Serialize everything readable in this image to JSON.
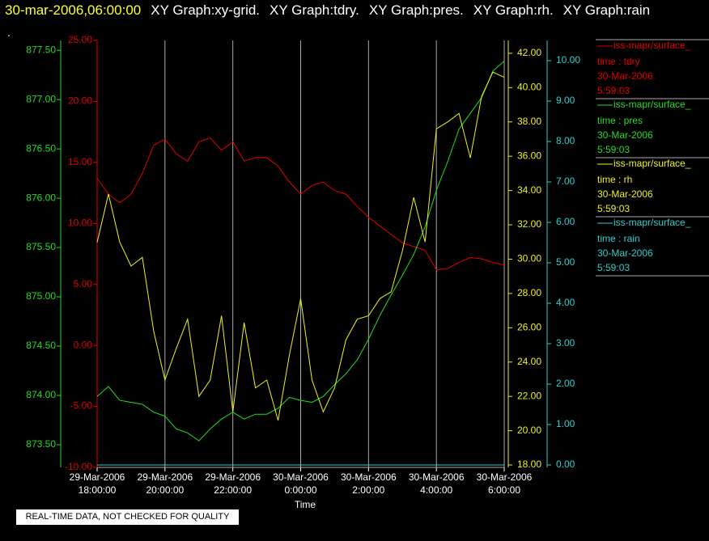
{
  "chart_data": {
    "type": "line",
    "title": "30-mar-2006,06:00:00",
    "graphs": [
      "XY Graph:xy-grid.",
      "XY Graph:tdry.",
      "XY Graph:pres.",
      "XY Graph:rh.",
      "XY Graph:rain"
    ],
    "dot": ".",
    "x_label": "Time",
    "note": "REAL-TIME DATA, NOT CHECKED FOR QUALITY",
    "grid": true,
    "x": [
      "2006-03-29T18:00",
      "2006-03-29T18:20",
      "2006-03-29T18:40",
      "2006-03-29T19:00",
      "2006-03-29T19:20",
      "2006-03-29T19:40",
      "2006-03-29T20:00",
      "2006-03-29T20:20",
      "2006-03-29T20:40",
      "2006-03-29T21:00",
      "2006-03-29T21:20",
      "2006-03-29T21:40",
      "2006-03-29T22:00",
      "2006-03-29T22:20",
      "2006-03-29T22:40",
      "2006-03-29T23:00",
      "2006-03-29T23:20",
      "2006-03-29T23:40",
      "2006-03-30T00:00",
      "2006-03-30T00:20",
      "2006-03-30T00:40",
      "2006-03-30T01:00",
      "2006-03-30T01:20",
      "2006-03-30T01:40",
      "2006-03-30T02:00",
      "2006-03-30T02:20",
      "2006-03-30T02:40",
      "2006-03-30T03:00",
      "2006-03-30T03:20",
      "2006-03-30T03:40",
      "2006-03-30T04:00",
      "2006-03-30T04:20",
      "2006-03-30T04:40",
      "2006-03-30T05:00",
      "2006-03-30T05:20",
      "2006-03-30T05:40",
      "2006-03-30T06:00"
    ],
    "xlim": [
      "2006-03-29T18:00",
      "2006-03-30T06:00"
    ],
    "xticks": [
      {
        "value": "2006-03-29T18:00",
        "label": [
          "29-Mar-2006",
          "18:00:00"
        ]
      },
      {
        "value": "2006-03-29T20:00",
        "label": [
          "29-Mar-2006",
          "20:00:00"
        ]
      },
      {
        "value": "2006-03-29T22:00",
        "label": [
          "29-Mar-2006",
          "22:00:00"
        ]
      },
      {
        "value": "2006-03-30T00:00",
        "label": [
          "30-Mar-2006",
          "0:00:00"
        ]
      },
      {
        "value": "2006-03-30T02:00",
        "label": [
          "30-Mar-2006",
          "2:00:00"
        ]
      },
      {
        "value": "2006-03-30T04:00",
        "label": [
          "30-Mar-2006",
          "4:00:00"
        ]
      },
      {
        "value": "2006-03-30T06:00",
        "label": [
          "30-Mar-2006",
          "6:00:00"
        ]
      }
    ],
    "ylim": [
      -10,
      25
    ],
    "yticks": [
      {
        "value": -10,
        "label": "-10.00"
      },
      {
        "value": -5,
        "label": "-5.00"
      },
      {
        "value": 0,
        "label": "0.00"
      },
      {
        "value": 5,
        "label": "5.00"
      },
      {
        "value": 10,
        "label": "10.00"
      },
      {
        "value": 15,
        "label": "15.00"
      },
      {
        "value": 20,
        "label": "20.00"
      },
      {
        "value": 25,
        "label": "25.00"
      }
    ],
    "y2lim": [
      873.27,
      877.6
    ],
    "y2ticks": [
      {
        "value": 873.5,
        "label": "873.50"
      },
      {
        "value": 874,
        "label": "874.00"
      },
      {
        "value": 874.5,
        "label": "874.50"
      },
      {
        "value": 875,
        "label": "875.00"
      },
      {
        "value": 875.5,
        "label": "875.50"
      },
      {
        "value": 876,
        "label": "876.00"
      },
      {
        "value": 876.5,
        "label": "876.50"
      },
      {
        "value": 877,
        "label": "877.00"
      },
      {
        "value": 877.5,
        "label": "877.50"
      }
    ],
    "y3lim": [
      17.86,
      42.75
    ],
    "y3ticks": [
      {
        "value": 18,
        "label": "18.00"
      },
      {
        "value": 20,
        "label": "20.00"
      },
      {
        "value": 22,
        "label": "22.00"
      },
      {
        "value": 24,
        "label": "24.00"
      },
      {
        "value": 26,
        "label": "26.00"
      },
      {
        "value": 28,
        "label": "28.00"
      },
      {
        "value": 30,
        "label": "30.00"
      },
      {
        "value": 32,
        "label": "32.00"
      },
      {
        "value": 34,
        "label": "34.00"
      },
      {
        "value": 36,
        "label": "36.00"
      },
      {
        "value": 38,
        "label": "38.00"
      },
      {
        "value": 40,
        "label": "40.00"
      },
      {
        "value": 42,
        "label": "42.00"
      }
    ],
    "y4lim": [
      -0.06,
      10.5
    ],
    "y4ticks": [
      {
        "value": 0,
        "label": "0.00"
      },
      {
        "value": 1,
        "label": "1.00"
      },
      {
        "value": 2,
        "label": "2.00"
      },
      {
        "value": 3,
        "label": "3.00"
      },
      {
        "value": 4,
        "label": "4.00"
      },
      {
        "value": 5,
        "label": "5.00"
      },
      {
        "value": 6,
        "label": "6.00"
      },
      {
        "value": 7,
        "label": "7.00"
      },
      {
        "value": 8,
        "label": "8.00"
      },
      {
        "value": 9,
        "label": "9.00"
      },
      {
        "value": 10,
        "label": "10.00"
      }
    ],
    "series": [
      {
        "name": "iss-mapr/surface_",
        "legend_lines": [
          "time : tdry",
          "30-Mar-2006",
          "5:59:03"
        ],
        "color": "#e00000",
        "axis": "y",
        "values": [
          13.7,
          12.4,
          11.7,
          12.4,
          14.1,
          16.4,
          16.9,
          15.7,
          15.1,
          16.7,
          17.0,
          16.0,
          16.7,
          15.1,
          15.4,
          15.4,
          14.7,
          13.4,
          12.4,
          13.1,
          13.4,
          12.7,
          12.4,
          11.4,
          10.5,
          9.8,
          9.1,
          8.4,
          8.1,
          7.8,
          6.2,
          6.3,
          6.8,
          7.2,
          7.1,
          6.8,
          6.6
        ]
      },
      {
        "name": "iss-mapr/surface_",
        "legend_lines": [
          "time : pres",
          "30-Mar-2006",
          "5:59:03"
        ],
        "color": "#22dd22",
        "axis": "y2",
        "values": [
          873.99,
          874.09,
          873.95,
          873.93,
          873.91,
          873.83,
          873.79,
          873.66,
          873.62,
          873.54,
          873.66,
          873.76,
          873.83,
          873.76,
          873.81,
          873.81,
          873.87,
          873.98,
          873.95,
          873.93,
          873.99,
          874.11,
          874.22,
          874.36,
          874.57,
          874.81,
          875.02,
          875.22,
          875.43,
          875.71,
          876.08,
          876.37,
          876.7,
          876.86,
          877.02,
          877.29,
          877.39
        ]
      },
      {
        "name": "iss-mapr/surface_",
        "legend_lines": [
          "time : rh",
          "30-Mar-2006",
          "5:59:03"
        ],
        "color": "#f0f020",
        "axis": "y3",
        "values": [
          30.97,
          33.8,
          31.0,
          29.6,
          30.1,
          25.8,
          22.95,
          24.8,
          26.5,
          22.0,
          22.95,
          26.7,
          21.1,
          26.3,
          22.5,
          22.95,
          20.6,
          24.4,
          27.7,
          22.95,
          21.1,
          22.5,
          25.3,
          26.5,
          26.7,
          27.7,
          28.1,
          30.5,
          33.6,
          31.0,
          37.6,
          38.0,
          38.5,
          35.9,
          39.5,
          40.9,
          40.6
        ]
      },
      {
        "name": "iss-mapr/surface_",
        "legend_lines": [
          "time : rain",
          "30-Mar-2006",
          "5:59:03"
        ],
        "color": "#33cccc",
        "axis": "y4",
        "values": [
          0,
          0,
          0,
          0,
          0,
          0,
          0,
          0,
          0,
          0,
          0,
          0,
          0,
          0,
          0,
          0,
          0,
          0,
          0,
          0,
          0,
          0,
          0,
          0,
          0,
          0,
          0,
          0,
          0,
          0,
          0,
          0,
          0,
          0,
          0,
          0,
          0
        ]
      }
    ]
  }
}
